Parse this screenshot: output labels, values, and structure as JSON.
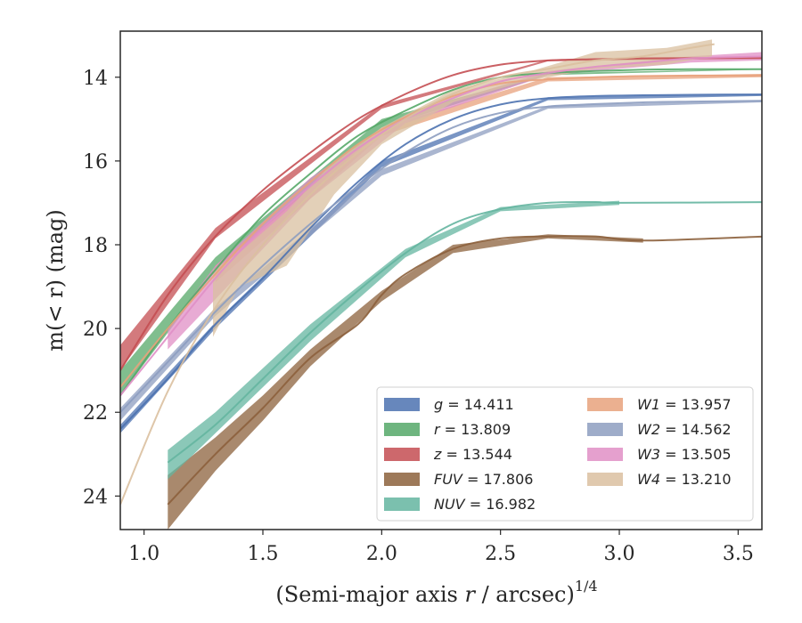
{
  "chart_data": {
    "type": "line",
    "xlabel": "(Semi-major axis r / arcsec)",
    "xlabel_var": "r",
    "xlabel_superscript": "1/4",
    "ylabel": "m(< r) (mag)",
    "xlim": [
      0.9,
      3.6
    ],
    "ylim": [
      24.8,
      12.9
    ],
    "y_inverted": true,
    "x_ticks": [
      1.0,
      1.5,
      2.0,
      2.5,
      3.0,
      3.5
    ],
    "x_tick_labels": [
      "1.0",
      "1.5",
      "2.0",
      "2.5",
      "3.0",
      "3.5"
    ],
    "y_ticks": [
      14,
      16,
      18,
      20,
      22,
      24
    ],
    "y_tick_labels": [
      "14",
      "16",
      "18",
      "20",
      "22",
      "24"
    ],
    "grid": false,
    "legend_position": "bottom-right",
    "legend_columns": 2,
    "series": [
      {
        "name": "g",
        "label_value": "14.411",
        "color": "#4c72b0",
        "x": [
          0.9,
          1.1,
          1.3,
          1.5,
          1.7,
          1.9,
          2.1,
          2.3,
          2.5,
          2.7,
          2.9,
          3.1,
          3.3,
          3.6
        ],
        "y": [
          22.4,
          21.2,
          19.9,
          18.8,
          17.6,
          16.5,
          15.6,
          15.0,
          14.65,
          14.5,
          14.45,
          14.43,
          14.42,
          14.41
        ],
        "band": [
          [
            0.9,
            22.3,
            22.5
          ],
          [
            1.3,
            19.85,
            20.0
          ],
          [
            2.0,
            16.0,
            16.15
          ],
          [
            2.7,
            14.48,
            14.55
          ],
          [
            3.6,
            14.4,
            14.45
          ]
        ]
      },
      {
        "name": "r",
        "label_value": "13.809",
        "color": "#55a868",
        "x": [
          0.9,
          1.1,
          1.3,
          1.5,
          1.7,
          1.9,
          2.1,
          2.3,
          2.5,
          2.7,
          2.9,
          3.1,
          3.3,
          3.6
        ],
        "y": [
          21.6,
          20.0,
          18.6,
          17.3,
          16.3,
          15.4,
          14.8,
          14.3,
          14.0,
          13.9,
          13.85,
          13.82,
          13.81,
          13.81
        ],
        "band": [
          [
            0.9,
            21.0,
            21.6
          ],
          [
            1.3,
            18.3,
            18.6
          ],
          [
            2.0,
            15.0,
            15.2
          ],
          [
            2.7,
            13.9,
            13.95
          ],
          [
            3.6,
            13.8,
            13.82
          ]
        ]
      },
      {
        "name": "z",
        "label_value": "13.544",
        "color": "#c44e52",
        "x": [
          0.9,
          1.1,
          1.3,
          1.5,
          1.7,
          1.9,
          2.1,
          2.3,
          2.5,
          2.7,
          2.9,
          3.1,
          3.3,
          3.6
        ],
        "y": [
          21.0,
          19.2,
          17.8,
          16.7,
          15.8,
          15.0,
          14.4,
          13.95,
          13.7,
          13.6,
          13.57,
          13.55,
          13.545,
          13.544
        ],
        "band": [
          [
            0.9,
            20.4,
            21.0
          ],
          [
            1.3,
            17.6,
            17.85
          ],
          [
            2.0,
            14.65,
            14.75
          ],
          [
            2.7,
            13.58,
            13.62
          ],
          [
            3.6,
            13.54,
            13.55
          ]
        ]
      },
      {
        "name": "FUV",
        "label_value": "17.806",
        "color": "#8c613c",
        "x": [
          1.1,
          1.3,
          1.5,
          1.7,
          1.9,
          2.0,
          2.1,
          2.3,
          2.5,
          2.7,
          2.9,
          3.1,
          3.6
        ],
        "y": [
          24.2,
          23.0,
          21.9,
          20.7,
          19.9,
          19.2,
          18.7,
          18.1,
          17.85,
          17.8,
          17.8,
          17.9,
          17.806
        ],
        "band": [
          [
            1.1,
            23.5,
            24.8
          ],
          [
            1.3,
            22.6,
            23.4
          ],
          [
            1.5,
            21.6,
            22.2
          ],
          [
            1.7,
            20.5,
            20.9
          ],
          [
            2.0,
            19.1,
            19.35
          ],
          [
            2.3,
            18.0,
            18.2
          ],
          [
            2.7,
            17.75,
            17.85
          ],
          [
            3.1,
            17.85,
            17.95
          ]
        ]
      },
      {
        "name": "NUV",
        "label_value": "16.982",
        "color": "#64b5a0",
        "x": [
          1.1,
          1.3,
          1.5,
          1.7,
          1.9,
          2.1,
          2.3,
          2.5,
          2.7,
          2.9,
          3.0,
          3.6
        ],
        "y": [
          23.2,
          22.3,
          21.2,
          20.1,
          19.1,
          18.2,
          17.5,
          17.15,
          17.0,
          16.98,
          17.0,
          16.982
        ],
        "band": [
          [
            1.1,
            22.9,
            23.6
          ],
          [
            1.3,
            22.0,
            22.5
          ],
          [
            1.7,
            19.9,
            20.3
          ],
          [
            2.1,
            18.1,
            18.3
          ],
          [
            2.5,
            17.1,
            17.2
          ],
          [
            3.0,
            16.95,
            17.05
          ]
        ]
      },
      {
        "name": "W1",
        "label_value": "13.957",
        "color": "#e8a27c",
        "x": [
          0.9,
          1.1,
          1.3,
          1.5,
          1.7,
          1.9,
          2.1,
          2.3,
          2.5,
          2.7,
          2.9,
          3.1,
          3.3,
          3.6
        ],
        "y": [
          21.4,
          20.0,
          18.7,
          17.5,
          16.5,
          15.6,
          14.95,
          14.45,
          14.15,
          14.05,
          14.0,
          13.97,
          13.96,
          13.957
        ],
        "band": [
          [
            1.3,
            18.5,
            18.9
          ],
          [
            2.0,
            15.2,
            15.4
          ],
          [
            2.7,
            14.0,
            14.1
          ],
          [
            3.6,
            13.92,
            14.0
          ]
        ]
      },
      {
        "name": "W2",
        "label_value": "14.562",
        "color": "#8d9dc0",
        "x": [
          0.9,
          1.1,
          1.3,
          1.5,
          1.7,
          1.9,
          2.1,
          2.3,
          2.5,
          2.7,
          2.9,
          3.1,
          3.3,
          3.6
        ],
        "y": [
          22.0,
          20.8,
          19.6,
          18.5,
          17.5,
          16.6,
          15.8,
          15.2,
          14.85,
          14.7,
          14.64,
          14.6,
          14.58,
          14.562
        ],
        "band": [
          [
            0.9,
            21.9,
            22.2
          ],
          [
            1.3,
            19.5,
            19.7
          ],
          [
            2.0,
            16.2,
            16.35
          ],
          [
            2.7,
            14.68,
            14.75
          ],
          [
            3.6,
            14.55,
            14.6
          ]
        ]
      },
      {
        "name": "W3",
        "label_value": "13.505",
        "color": "#e08fc6",
        "x": [
          0.9,
          1.1,
          1.3,
          1.5,
          1.7,
          1.9,
          2.1,
          2.3,
          2.5,
          2.7,
          2.9,
          3.1,
          3.3,
          3.6
        ],
        "y": [
          21.6,
          20.2,
          18.8,
          17.6,
          16.6,
          15.7,
          15.0,
          14.5,
          14.1,
          13.9,
          13.75,
          13.65,
          13.55,
          13.505
        ],
        "band": [
          [
            1.1,
            20.0,
            20.5
          ],
          [
            1.3,
            18.5,
            19.3
          ],
          [
            1.7,
            16.4,
            16.9
          ],
          [
            2.1,
            14.9,
            15.1
          ],
          [
            2.7,
            13.85,
            13.95
          ],
          [
            3.3,
            13.5,
            13.65
          ],
          [
            3.6,
            13.4,
            13.6
          ]
        ]
      },
      {
        "name": "W4",
        "label_value": "13.210",
        "color": "#dac0a0",
        "x": [
          0.9,
          1.1,
          1.3,
          1.5,
          1.7,
          1.9,
          2.1,
          2.3,
          2.5,
          2.7,
          2.9,
          3.1,
          3.3,
          3.4
        ],
        "y": [
          24.2,
          21.5,
          19.5,
          18.0,
          16.8,
          15.8,
          15.0,
          14.4,
          14.0,
          13.8,
          13.6,
          13.5,
          13.3,
          13.21
        ],
        "band": [
          [
            1.29,
            18.6,
            20.2
          ],
          [
            1.4,
            18.2,
            19.0
          ],
          [
            1.6,
            17.2,
            18.5
          ],
          [
            1.8,
            16.0,
            16.8
          ],
          [
            2.0,
            15.2,
            15.6
          ],
          [
            2.3,
            14.3,
            14.6
          ],
          [
            2.6,
            13.9,
            14.1
          ],
          [
            2.9,
            13.4,
            13.8
          ],
          [
            3.2,
            13.3,
            13.7
          ],
          [
            3.39,
            13.1,
            13.5
          ]
        ]
      }
    ]
  }
}
